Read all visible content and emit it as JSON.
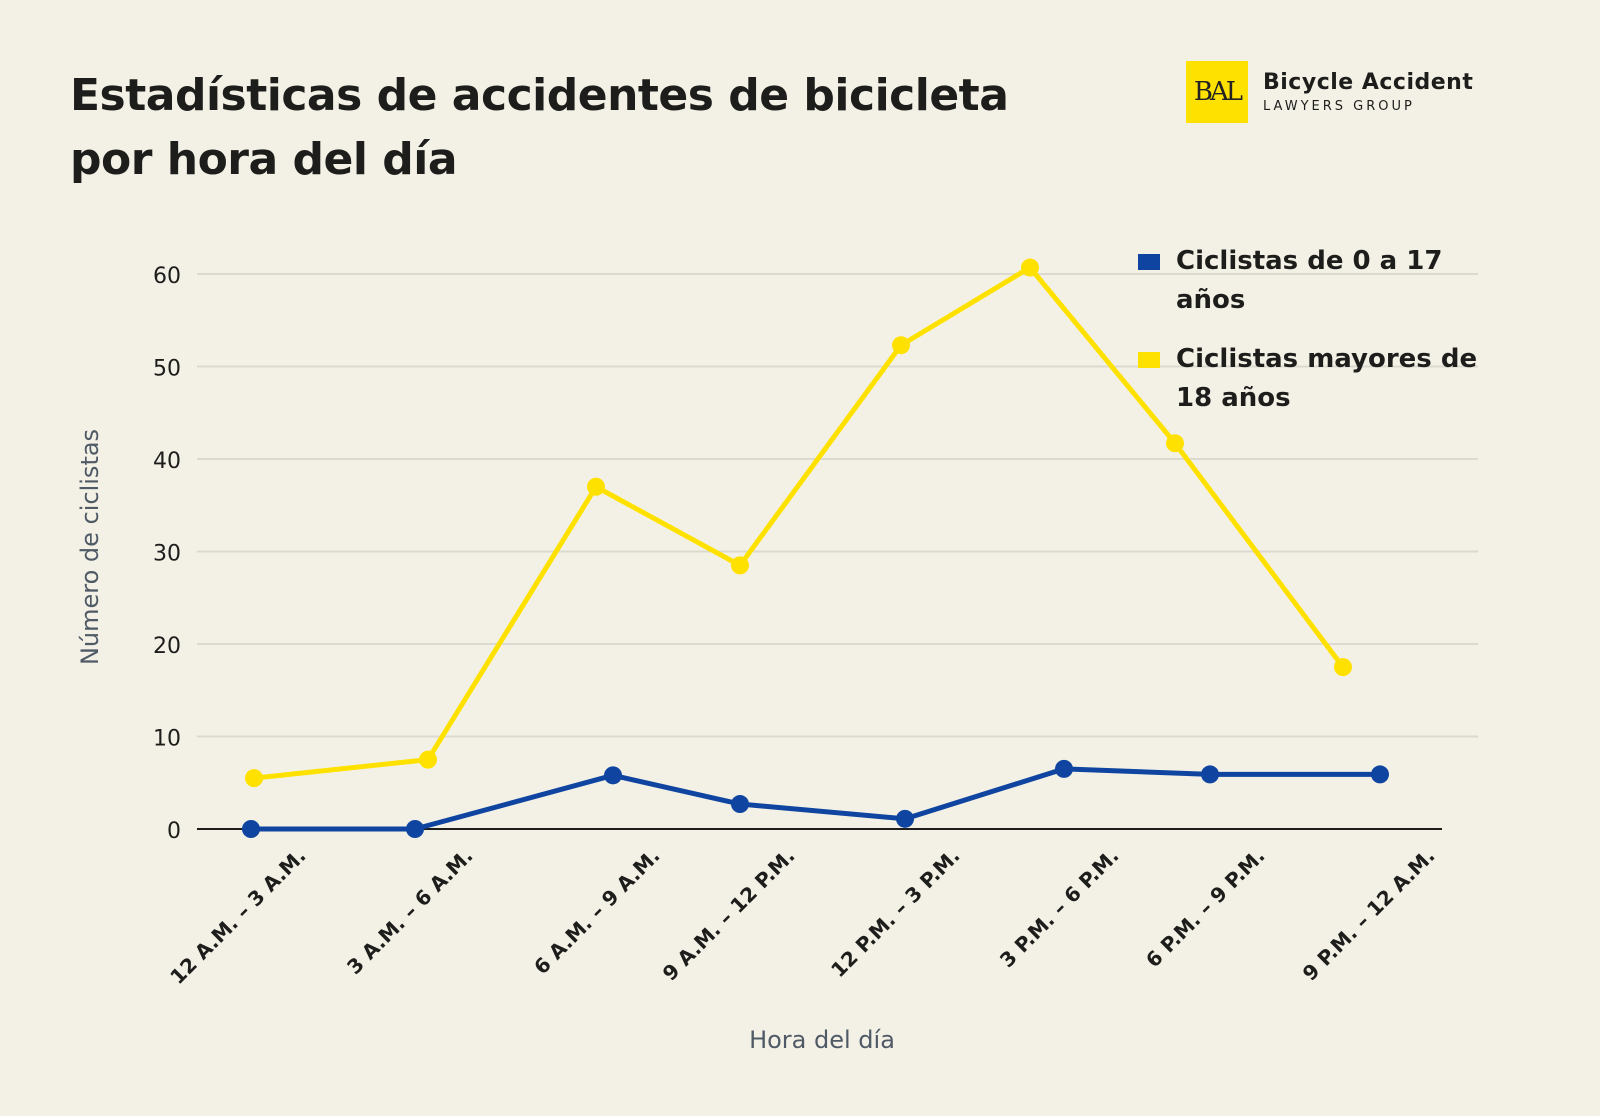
{
  "title": "Estadísticas de accidentes de bicicleta por hora del día",
  "logo": {
    "mark": "BAL",
    "name": "Bicycle Accident",
    "sub": "LAWYERS GROUP"
  },
  "chart_data": {
    "type": "line",
    "title": "Estadísticas de accidentes de bicicleta por hora del día",
    "xlabel": "Hora del día",
    "ylabel": "Número de ciclistas",
    "categories": [
      "12 A.M. – 3 A.M.",
      "3 A.M. – 6 A.M.",
      "6 A.M. – 9 A.M.",
      "9 A.M. – 12 P.M.",
      "12 P.M. – 3 P.M.",
      "3 P.M. – 6 P.M.",
      "6 P.M. – 9 P.M.",
      "9 P.M. – 12 A.M."
    ],
    "ylim": [
      0,
      60
    ],
    "yticks": [
      0,
      10,
      20,
      30,
      40,
      50,
      60
    ],
    "grid": true,
    "legend_position": "top-right",
    "series": [
      {
        "name": "Ciclistas de 0 a 17 años",
        "color": "#0f45a0",
        "values": [
          0,
          0,
          5.8,
          2.7,
          1.1,
          6.5,
          5.9,
          5.9
        ]
      },
      {
        "name": "Ciclistas mayores de 18 años",
        "color": "#ffe100",
        "values": [
          5.5,
          7.5,
          37,
          28.5,
          52.3,
          60.7,
          41.7,
          17.5
        ]
      }
    ]
  }
}
